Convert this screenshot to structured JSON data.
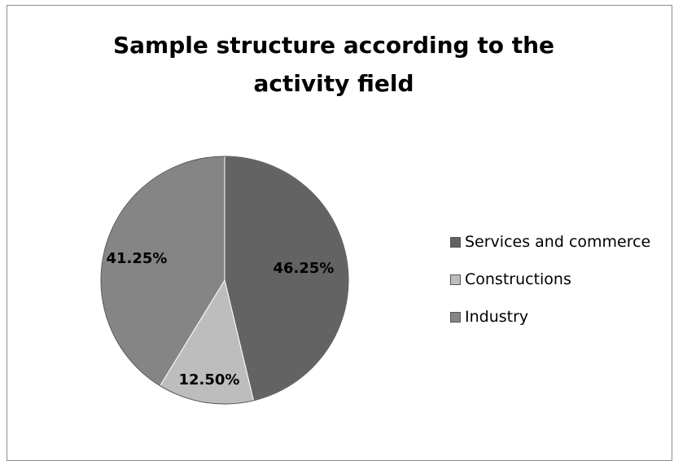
{
  "chart_data": {
    "type": "pie",
    "title_lines": [
      "Sample structure according to the",
      "activity field"
    ],
    "slices": [
      {
        "name": "Services and commerce",
        "value": 46.25,
        "label": "46.25%",
        "color": "#636363"
      },
      {
        "name": "Constructions",
        "value": 12.5,
        "label": "12.50%",
        "color": "#bdbdbd"
      },
      {
        "name": "Industry",
        "value": 41.25,
        "label": "41.25%",
        "color": "#858585"
      }
    ],
    "start": "12 o'clock",
    "direction": "clockwise",
    "legend_position": "right"
  }
}
